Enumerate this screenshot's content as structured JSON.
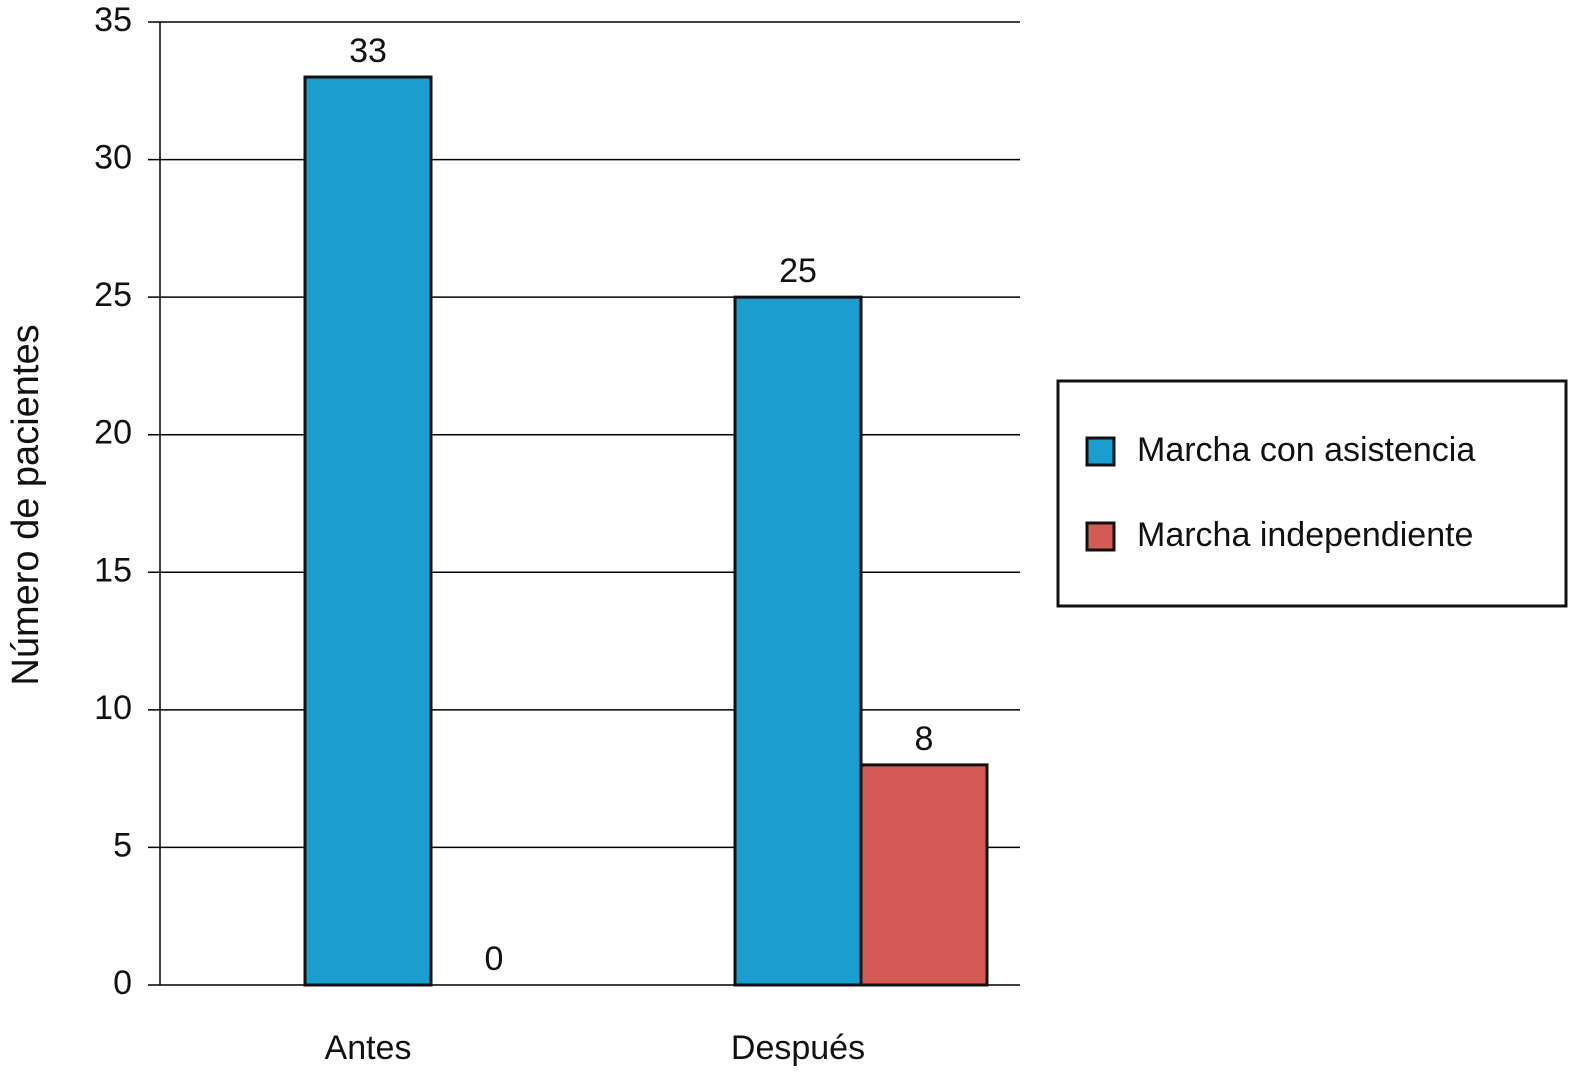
{
  "chart_data": {
    "type": "bar",
    "y_label": "Número de pacientes",
    "categories": [
      "Antes",
      "Después"
    ],
    "series": [
      {
        "name": "Marcha con asistencia",
        "color": "#1b9dd0",
        "values": [
          33,
          25
        ]
      },
      {
        "name": "Marcha independiente",
        "color": "#d45b55",
        "values": [
          0,
          8
        ]
      }
    ],
    "ylim": [
      0,
      35
    ],
    "yticks": [
      0,
      5,
      10,
      15,
      20,
      25,
      30,
      35
    ],
    "grid": true,
    "legend": "right"
  }
}
